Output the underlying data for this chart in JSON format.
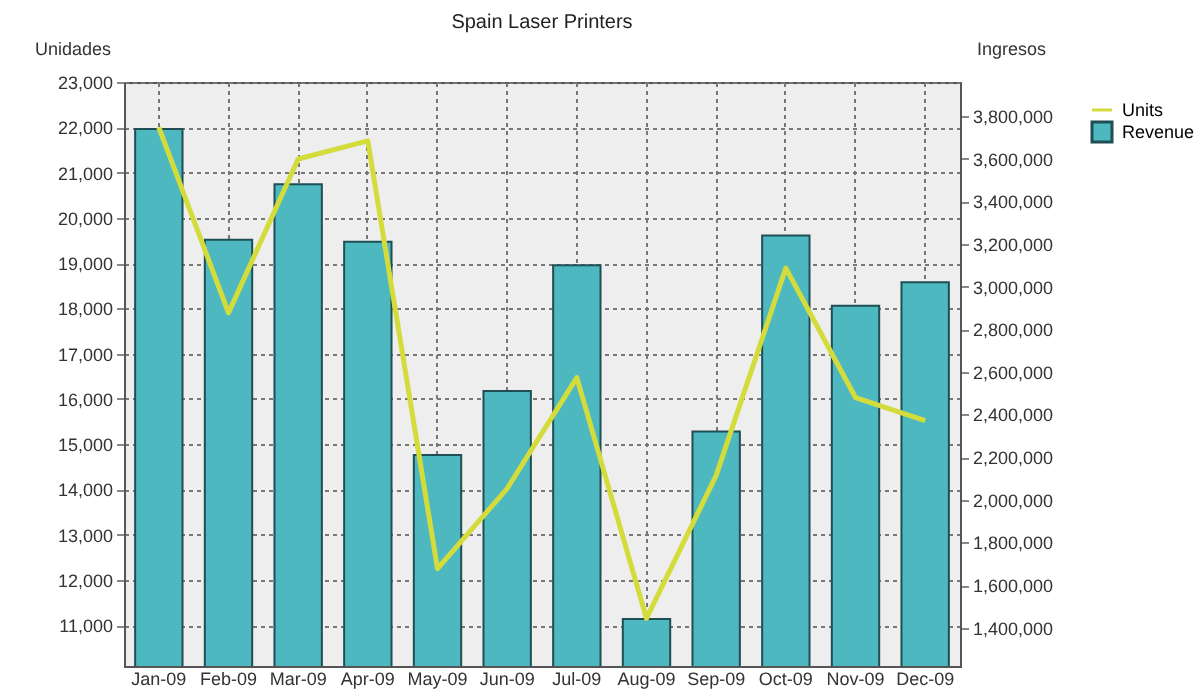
{
  "chart_data": {
    "type": "bar",
    "title": "Spain  Laser Printers",
    "ylabel": "Unidades",
    "y2label": "Ingresos",
    "categories": [
      "Jan-09",
      "Feb-09",
      "Mar-09",
      "Apr-09",
      "May-09",
      "Jun-09",
      "Jul-09",
      "Aug-09",
      "Sep-09",
      "Oct-09",
      "Nov-09",
      "Dec-09"
    ],
    "series": [
      {
        "name": "Revenue",
        "axis": "y2",
        "color": "#4db8c0",
        "values": [
          3740000,
          3220000,
          3480000,
          3210000,
          2210000,
          2510000,
          3100000,
          1440000,
          2320000,
          3240000,
          2910000,
          3020000
        ]
      },
      {
        "name": "Units",
        "type": "line",
        "axis": "y",
        "color": "#d4dc3c",
        "values": [
          22000,
          17900,
          21300,
          21700,
          12250,
          14020,
          16470,
          11150,
          14310,
          18890,
          16030,
          15520
        ]
      }
    ],
    "ylim": [
      10100,
      23000
    ],
    "yticks": [
      {
        "value": 11000,
        "label": "11,000"
      },
      {
        "value": 12000,
        "label": "12,000"
      },
      {
        "value": 13000,
        "label": "13,000"
      },
      {
        "value": 14000,
        "label": "14,000"
      },
      {
        "value": 15000,
        "label": "15,000"
      },
      {
        "value": 16000,
        "label": "16,000"
      },
      {
        "value": 17000,
        "label": "17,000"
      },
      {
        "value": 18000,
        "label": "18,000"
      },
      {
        "value": 19000,
        "label": "19,000"
      },
      {
        "value": 20000,
        "label": "20,000"
      },
      {
        "value": 21000,
        "label": "21,000"
      },
      {
        "value": 22000,
        "label": "22,000"
      },
      {
        "value": 23000,
        "label": "23,000"
      }
    ],
    "y2lim": [
      1220000,
      3960000
    ],
    "y2ticks": [
      {
        "value": 1400000,
        "label": "1,400,000"
      },
      {
        "value": 1600000,
        "label": "1,600,000"
      },
      {
        "value": 1800000,
        "label": "1,800,000"
      },
      {
        "value": 2000000,
        "label": "2,000,000"
      },
      {
        "value": 2200000,
        "label": "2,200,000"
      },
      {
        "value": 2400000,
        "label": "2,400,000"
      },
      {
        "value": 2600000,
        "label": "2,600,000"
      },
      {
        "value": 2800000,
        "label": "2,800,000"
      },
      {
        "value": 3000000,
        "label": "3,000,000"
      },
      {
        "value": 3200000,
        "label": "3,200,000"
      },
      {
        "value": 3400000,
        "label": "3,400,000"
      },
      {
        "value": 3600000,
        "label": "3,600,000"
      },
      {
        "value": 3800000,
        "label": "3,800,000"
      }
    ],
    "grid": true,
    "legend": "top right",
    "marker": "none",
    "line_style": "solid"
  }
}
